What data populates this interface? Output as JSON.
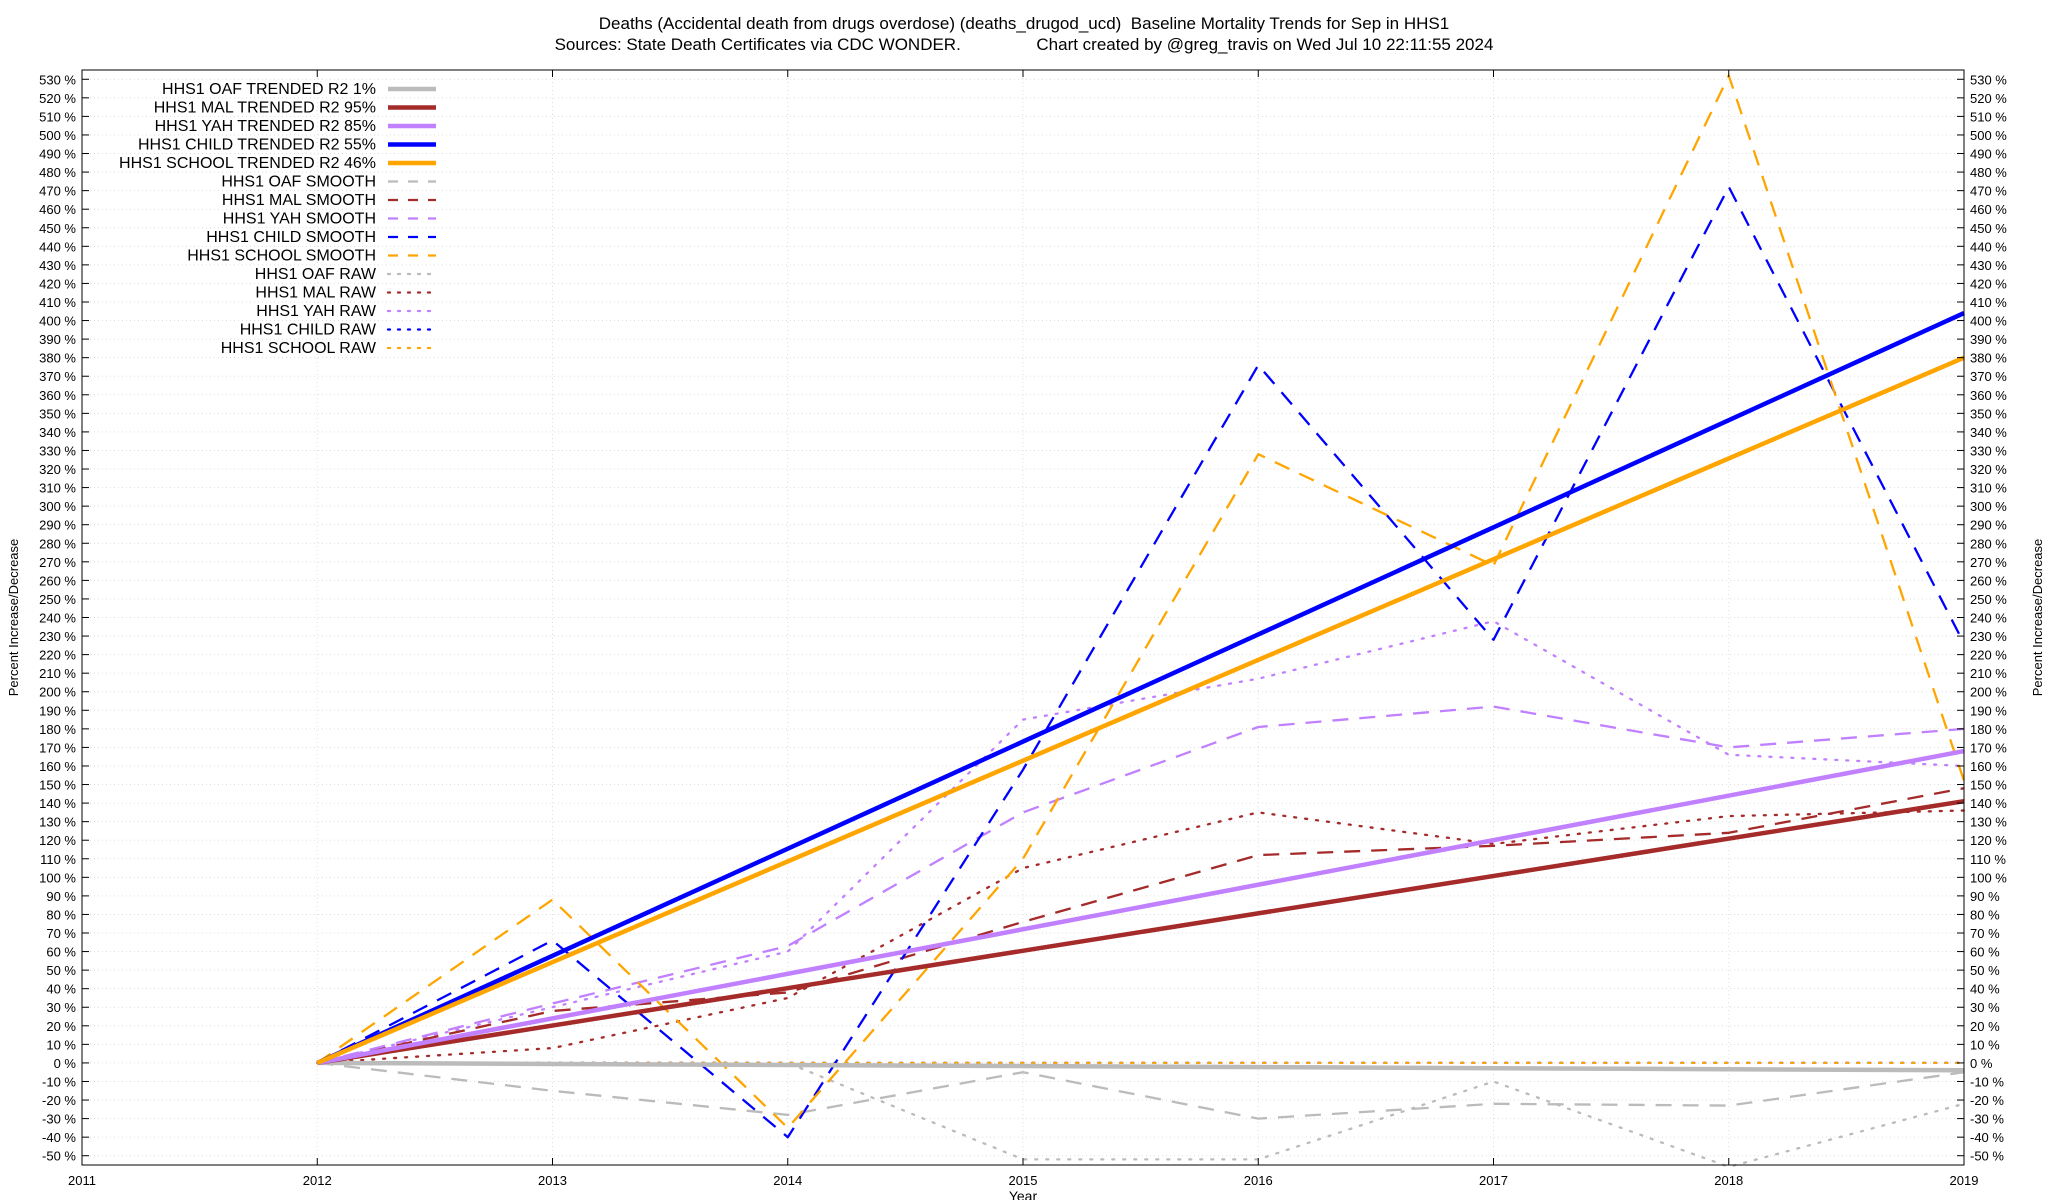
{
  "chart_data": {
    "type": "line",
    "title": "Deaths (Accidental death from drugs overdose) (deaths_drugod_ucd)  Baseline Mortality Trends for Sep in HHS1",
    "subtitle": "Sources: State Death Certificates via CDC WONDER.                Chart created by @greg_travis on Wed Jul 10 22:11:55 2024",
    "xlabel": "Year",
    "ylabel": "Percent Increase/Decrease",
    "y2label": "Percent Increase/Decrease",
    "xlim": [
      2011,
      2019
    ],
    "ylim": [
      -55,
      535
    ],
    "x_ticks": [
      "2011",
      "2012",
      "2013",
      "2014",
      "2015",
      "2016",
      "2017",
      "2018",
      "2019"
    ],
    "y_ticks": [
      -50,
      -40,
      -30,
      -20,
      -10,
      0,
      10,
      20,
      30,
      40,
      50,
      60,
      70,
      80,
      90,
      100,
      110,
      120,
      130,
      140,
      150,
      160,
      170,
      180,
      190,
      200,
      210,
      220,
      230,
      240,
      250,
      260,
      270,
      280,
      290,
      300,
      310,
      320,
      330,
      340,
      350,
      360,
      370,
      380,
      390,
      400,
      410,
      420,
      430,
      440,
      450,
      460,
      470,
      480,
      490,
      500,
      510,
      520,
      530
    ],
    "y_tick_suffix": " %",
    "grid": true,
    "legend_position": "top-left",
    "series": [
      {
        "name": "HHS1 OAF TRENDED R2  1%",
        "style": "solid",
        "color": "#bbbbbb",
        "x": [
          2012,
          2019
        ],
        "y": [
          0,
          -4
        ]
      },
      {
        "name": "HHS1 MAL TRENDED R2  95%",
        "style": "solid",
        "color": "#a52a2a",
        "x": [
          2012,
          2019
        ],
        "y": [
          0,
          141
        ]
      },
      {
        "name": "HHS1 YAH TRENDED R2  85%",
        "style": "solid",
        "color": "#c080ff",
        "x": [
          2012,
          2019
        ],
        "y": [
          0,
          168
        ]
      },
      {
        "name": "HHS1 CHILD TRENDED R2  55%",
        "style": "solid",
        "color": "#0000ff",
        "x": [
          2012,
          2019
        ],
        "y": [
          0,
          404
        ]
      },
      {
        "name": "HHS1 SCHOOL TRENDED R2  46%",
        "style": "solid",
        "color": "#ffa500",
        "x": [
          2012,
          2019
        ],
        "y": [
          0,
          380
        ]
      },
      {
        "name": "HHS1 OAF SMOOTH",
        "style": "dashed",
        "color": "#bbbbbb",
        "x": [
          2012,
          2013,
          2014,
          2015,
          2016,
          2017,
          2018,
          2019
        ],
        "y": [
          0,
          -15,
          -28,
          -5,
          -30,
          -22,
          -23,
          -5
        ]
      },
      {
        "name": "HHS1 MAL SMOOTH",
        "style": "dashed",
        "color": "#a52a2a",
        "x": [
          2012,
          2013,
          2014,
          2015,
          2016,
          2017,
          2018,
          2019
        ],
        "y": [
          0,
          28,
          38,
          76,
          112,
          117,
          124,
          148
        ]
      },
      {
        "name": "HHS1 YAH SMOOTH",
        "style": "dashed",
        "color": "#c080ff",
        "x": [
          2012,
          2013,
          2014,
          2015,
          2016,
          2017,
          2018,
          2019
        ],
        "y": [
          0,
          32,
          63,
          135,
          181,
          192,
          170,
          180
        ]
      },
      {
        "name": "HHS1 CHILD SMOOTH",
        "style": "dashed",
        "color": "#0000ff",
        "x": [
          2012,
          2013,
          2014,
          2015,
          2016,
          2017,
          2018,
          2019
        ],
        "y": [
          0,
          66,
          -40,
          158,
          376,
          228,
          472,
          226
        ]
      },
      {
        "name": "HHS1 SCHOOL SMOOTH",
        "style": "dashed",
        "color": "#ffa500",
        "x": [
          2012,
          2013,
          2014,
          2015,
          2016,
          2017,
          2018,
          2019
        ],
        "y": [
          0,
          88,
          -35,
          110,
          328,
          268,
          532,
          152
        ]
      },
      {
        "name": "HHS1 OAF RAW",
        "style": "dotted",
        "color": "#bbbbbb",
        "x": [
          2012,
          2013,
          2014,
          2015,
          2016,
          2017,
          2018,
          2019
        ],
        "y": [
          0,
          0,
          0,
          -52,
          -52,
          -10,
          -56,
          -22
        ]
      },
      {
        "name": "HHS1 MAL RAW",
        "style": "dotted",
        "color": "#a52a2a",
        "x": [
          2012,
          2013,
          2014,
          2015,
          2016,
          2017,
          2018,
          2019
        ],
        "y": [
          0,
          8,
          35,
          105,
          135,
          118,
          133,
          136
        ]
      },
      {
        "name": "HHS1 YAH RAW",
        "style": "dotted",
        "color": "#c080ff",
        "x": [
          2012,
          2013,
          2014,
          2015,
          2016,
          2017,
          2018,
          2019
        ],
        "y": [
          0,
          30,
          60,
          185,
          207,
          238,
          166,
          160
        ]
      },
      {
        "name": "HHS1 CHILD RAW",
        "style": "dotted",
        "color": "#0000ff",
        "x": [
          2012,
          2013,
          2014,
          2015,
          2016,
          2017,
          2018,
          2019
        ],
        "y": [
          0,
          0,
          0,
          0,
          0,
          0,
          0,
          0
        ]
      },
      {
        "name": "HHS1 SCHOOL RAW",
        "style": "dotted",
        "color": "#ffa500",
        "x": [
          2012,
          2013,
          2014,
          2015,
          2016,
          2017,
          2018,
          2019
        ],
        "y": [
          0,
          0,
          0,
          0,
          0,
          0,
          0,
          0
        ]
      }
    ]
  }
}
